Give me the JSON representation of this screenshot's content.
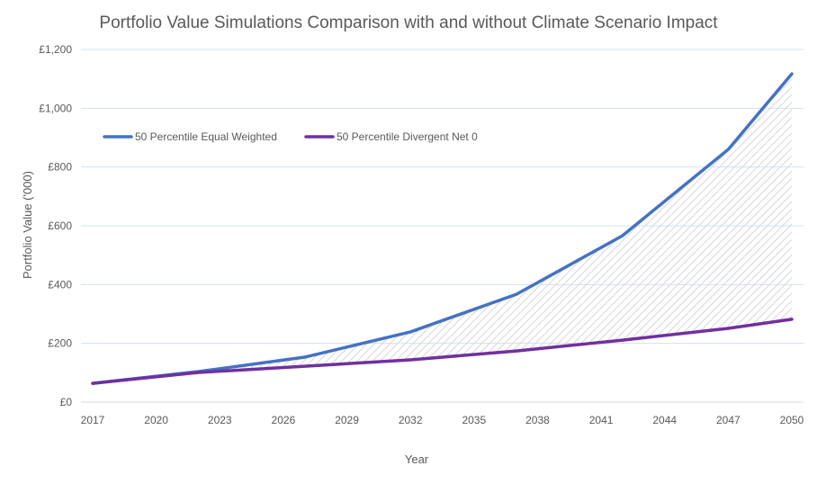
{
  "chart_data": {
    "type": "area",
    "title": "Portfolio Value Simulations Comparison with and without Climate Scenario Impact",
    "xlabel": "Year",
    "ylabel": "Portfolio Value ('000)",
    "x_ticks": [
      "2017",
      "2020",
      "2023",
      "2026",
      "2029",
      "2032",
      "2035",
      "2038",
      "2041",
      "2044",
      "2047",
      "2050"
    ],
    "y_ticks": [
      "£0",
      "£200",
      "£400",
      "£600",
      "£800",
      "£1,000",
      "£1,200"
    ],
    "xlim": [
      2017,
      2050
    ],
    "ylim": [
      0,
      1200
    ],
    "grid": true,
    "legend_position": "top-left",
    "x": [
      2017,
      2022,
      2027,
      2032,
      2037,
      2042,
      2047,
      2050
    ],
    "series": [
      {
        "name": "50 Percentile Equal Weighted",
        "color": "#4472C4",
        "values": [
          64,
          104,
          153,
          239,
          367,
          566,
          860,
          1117
        ]
      },
      {
        "name": "50 Percentile Divergent Net 0",
        "color": "#7030A0",
        "values": [
          64,
          101,
          122,
          144,
          174,
          211,
          251,
          282
        ]
      }
    ],
    "fill_between": {
      "pattern": "diagonal-hatch",
      "color": "#D9D9D9"
    }
  }
}
